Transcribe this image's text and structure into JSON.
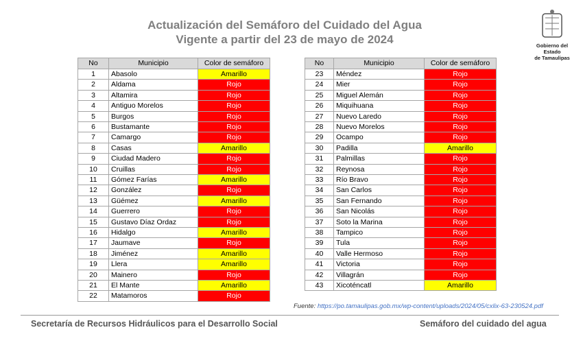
{
  "header": {
    "title_line1": "Actualización del Semáforo del Cuidado del Agua",
    "title_line2": "Vigente a partir del 23 de mayo de 2024",
    "logo_text_line1": "Gobierno del Estado",
    "logo_text_line2": "de Tamaulipas"
  },
  "table": {
    "columns": [
      "No",
      "Municipio",
      "Color de semáforo"
    ],
    "status_colors": {
      "Amarillo": {
        "fill": "#ffff00",
        "text": "#000000"
      },
      "Rojo": {
        "fill": "#ff0000",
        "text": "#ffffff"
      }
    },
    "rows": [
      [
        1,
        "Abasolo",
        "Amarillo"
      ],
      [
        2,
        "Aldama",
        "Rojo"
      ],
      [
        3,
        "Altamira",
        "Rojo"
      ],
      [
        4,
        "Antiguo Morelos",
        "Rojo"
      ],
      [
        5,
        "Burgos",
        "Rojo"
      ],
      [
        6,
        "Bustamante",
        "Rojo"
      ],
      [
        7,
        "Camargo",
        "Rojo"
      ],
      [
        8,
        "Casas",
        "Amarillo"
      ],
      [
        9,
        "Ciudad Madero",
        "Rojo"
      ],
      [
        10,
        "Cruillas",
        "Rojo"
      ],
      [
        11,
        "Gómez Farías",
        "Amarillo"
      ],
      [
        12,
        "González",
        "Rojo"
      ],
      [
        13,
        "Güémez",
        "Amarillo"
      ],
      [
        14,
        "Guerrero",
        "Rojo"
      ],
      [
        15,
        "Gustavo Díaz Ordaz",
        "Rojo"
      ],
      [
        16,
        "Hidalgo",
        "Amarillo"
      ],
      [
        17,
        "Jaumave",
        "Rojo"
      ],
      [
        18,
        "Jiménez",
        "Amarillo"
      ],
      [
        19,
        "Llera",
        "Amarillo"
      ],
      [
        20,
        "Mainero",
        "Rojo"
      ],
      [
        21,
        "El Mante",
        "Amarillo"
      ],
      [
        22,
        "Matamoros",
        "Rojo"
      ],
      [
        23,
        "Méndez",
        "Rojo"
      ],
      [
        24,
        "Mier",
        "Rojo"
      ],
      [
        25,
        "Miguel Alemán",
        "Rojo"
      ],
      [
        26,
        "Miquihuana",
        "Rojo"
      ],
      [
        27,
        "Nuevo Laredo",
        "Rojo"
      ],
      [
        28,
        "Nuevo Morelos",
        "Rojo"
      ],
      [
        29,
        "Ocampo",
        "Rojo"
      ],
      [
        30,
        "Padilla",
        "Amarillo"
      ],
      [
        31,
        "Palmillas",
        "Rojo"
      ],
      [
        32,
        "Reynosa",
        "Rojo"
      ],
      [
        33,
        "Río Bravo",
        "Rojo"
      ],
      [
        34,
        "San Carlos",
        "Rojo"
      ],
      [
        35,
        "San Fernando",
        "Rojo"
      ],
      [
        36,
        "San Nicolás",
        "Rojo"
      ],
      [
        37,
        "Soto la Marina",
        "Rojo"
      ],
      [
        38,
        "Tampico",
        "Rojo"
      ],
      [
        39,
        "Tula",
        "Rojo"
      ],
      [
        40,
        "Valle Hermoso",
        "Rojo"
      ],
      [
        41,
        "Victoria",
        "Rojo"
      ],
      [
        42,
        "Villagrán",
        "Rojo"
      ],
      [
        43,
        "Xicoténcatl",
        "Amarillo"
      ]
    ]
  },
  "source": {
    "label": "Fuente:",
    "url": "https://po.tamaulipas.gob.mx/wp-content/uploads/2024/05/cxlix-63-230524.pdf"
  },
  "footer": {
    "left": "Secretaría de Recursos Hidráulicos para el Desarrollo Social",
    "right": "Semáforo del cuidado del agua"
  }
}
